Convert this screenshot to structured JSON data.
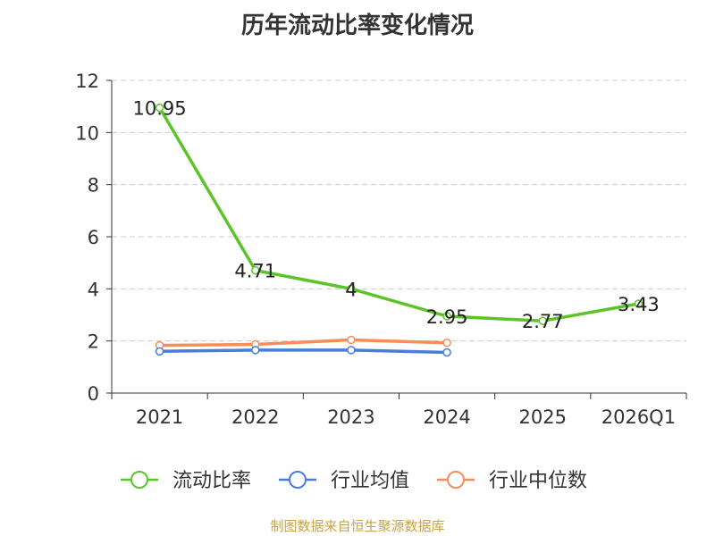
{
  "chart_data": {
    "type": "line",
    "title": "历年流动比率变化情况",
    "categories": [
      "2021",
      "2022",
      "2023",
      "2024",
      "2025",
      "2026Q1"
    ],
    "ylim": [
      0,
      12
    ],
    "yticks": [
      "0",
      "2",
      "4",
      "6",
      "8",
      "10",
      "12"
    ],
    "grid": true,
    "legend_position": "bottom",
    "series": [
      {
        "name": "流动比率",
        "color": "#5cc42a",
        "values": [
          10.95,
          4.71,
          4,
          2.95,
          2.77,
          3.43
        ],
        "labels": [
          "10.95",
          "4.71",
          "4",
          "2.95",
          "2.77",
          "3.43"
        ]
      },
      {
        "name": "行业均值",
        "color": "#4a7ddb",
        "values": [
          1.6,
          1.65,
          1.65,
          1.56,
          null,
          null
        ]
      },
      {
        "name": "行业中位数",
        "color": "#f58e5a",
        "values": [
          1.83,
          1.87,
          2.04,
          1.93,
          null,
          null
        ]
      }
    ]
  },
  "source_note": "制图数据来自恒生聚源数据库"
}
